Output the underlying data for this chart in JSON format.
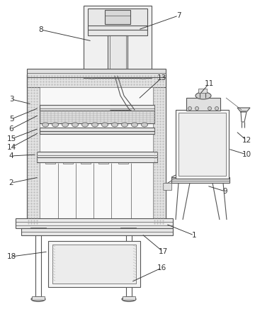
{
  "bg_color": "#ffffff",
  "lc": "#555555",
  "lc_dark": "#333333",
  "fc_light": "#f5f5f5",
  "fc_mid": "#e8e8e8",
  "fc_gray": "#d8d8d8",
  "fc_dot": "#e0e0e0",
  "lw_main": 0.8,
  "lw_thin": 0.5
}
